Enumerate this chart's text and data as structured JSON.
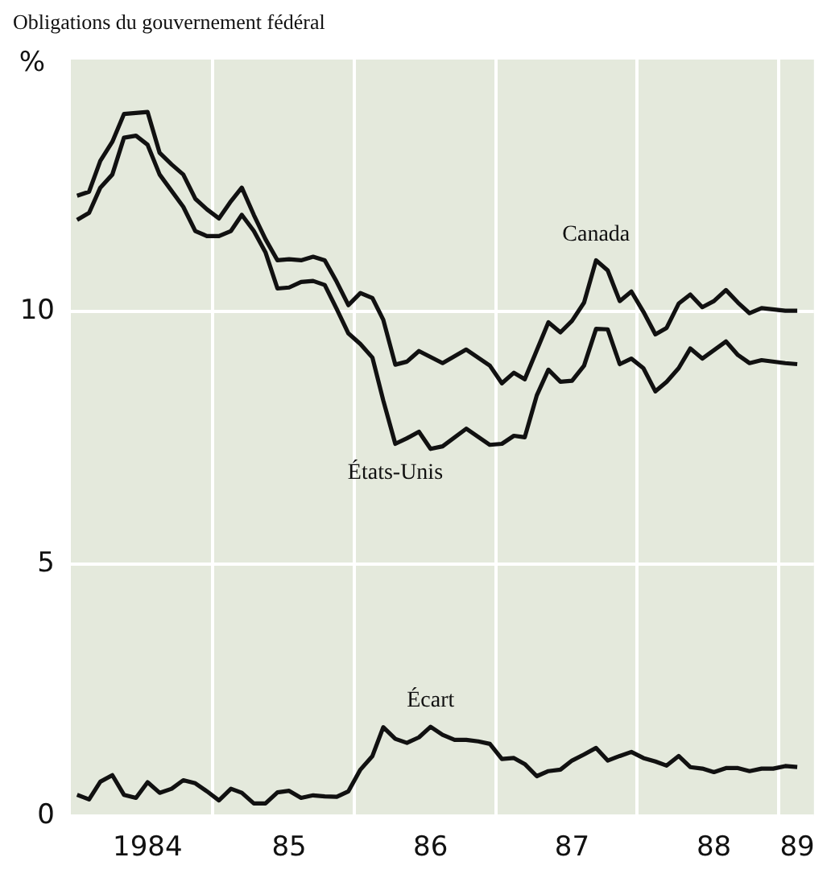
{
  "chart_data": {
    "type": "line",
    "title": "Obligations du gouvernement fédéral",
    "ylabel": "%",
    "xlim": [
      "1983-12-16",
      "1989-03-16"
    ],
    "ylim": [
      0,
      15
    ],
    "yticks": [
      0,
      5,
      10
    ],
    "xticks": [
      {
        "value": "1984-07",
        "label": "1984"
      },
      {
        "value": "1984-12-16",
        "label": null
      },
      {
        "value": "1985-07",
        "label": "85"
      },
      {
        "value": "1985-12-16",
        "label": null
      },
      {
        "value": "1986-07",
        "label": "86"
      },
      {
        "value": "1986-12-16",
        "label": null
      },
      {
        "value": "1987-07",
        "label": "87"
      },
      {
        "value": "1987-12-16",
        "label": null
      },
      {
        "value": "1988-07",
        "label": "88"
      },
      {
        "value": "1988-12-16",
        "label": null
      },
      {
        "value": "1989-02",
        "label": "89"
      }
    ],
    "grid": true,
    "legend": false,
    "marker": "none",
    "line_style": "solid",
    "series": [
      {
        "color": "#111111",
        "x": [
          "1984-01",
          "1984-02",
          "1984-03",
          "1984-04",
          "1984-05",
          "1984-07",
          "1984-08",
          "1984-09",
          "1984-10",
          "1984-11",
          "1984-12",
          "1985-01",
          "1985-02",
          "1985-03",
          "1985-04",
          "1985-05",
          "1985-06",
          "1985-07",
          "1985-08",
          "1985-09",
          "1985-10",
          "1985-11",
          "1985-12",
          "1986-01",
          "1986-02",
          "1986-03",
          "1986-04",
          "1986-05",
          "1986-06",
          "1986-08",
          "1986-10",
          "1986-12",
          "1987-01",
          "1987-02",
          "1987-03",
          "1987-05",
          "1987-06",
          "1987-07",
          "1987-08",
          "1987-09",
          "1987-10",
          "1987-11",
          "1987-12",
          "1988-01",
          "1988-02",
          "1988-03",
          "1988-04",
          "1988-05",
          "1988-06",
          "1988-07",
          "1988-08",
          "1988-09",
          "1988-10",
          "1988-11",
          "1989-01",
          "1989-02"
        ],
        "values": [
          12.3,
          12.38,
          12.99,
          13.37,
          13.92,
          13.96,
          13.15,
          12.92,
          12.72,
          12.24,
          12.03,
          11.85,
          12.19,
          12.46,
          11.92,
          11.44,
          11.02,
          11.04,
          11.02,
          11.09,
          11.02,
          10.59,
          10.13,
          10.37,
          10.27,
          9.84,
          8.95,
          9.01,
          9.22,
          8.98,
          9.25,
          8.93,
          8.58,
          8.79,
          8.66,
          9.79,
          9.59,
          9.82,
          10.18,
          11.02,
          10.82,
          10.21,
          10.4,
          10.0,
          9.55,
          9.68,
          10.16,
          10.34,
          10.09,
          10.21,
          10.43,
          10.18,
          9.97,
          10.07,
          10.02,
          10.02
        ]
      },
      {
        "color": "#111111",
        "x": [
          "1984-01",
          "1984-02",
          "1984-03",
          "1984-04",
          "1984-05",
          "1984-06",
          "1984-07",
          "1984-08",
          "1984-10",
          "1984-11",
          "1984-12",
          "1985-01",
          "1985-02",
          "1985-03",
          "1985-04",
          "1985-05",
          "1985-06",
          "1985-07",
          "1985-08",
          "1985-09",
          "1985-10",
          "1985-11",
          "1985-12",
          "1986-01",
          "1986-02",
          "1986-03",
          "1986-04",
          "1986-05",
          "1986-06",
          "1986-07",
          "1986-08",
          "1986-10",
          "1986-12",
          "1987-01",
          "1987-02",
          "1987-03",
          "1987-04",
          "1987-05",
          "1987-06",
          "1987-07",
          "1987-08",
          "1987-09",
          "1987-10",
          "1987-11",
          "1987-12",
          "1988-01",
          "1988-02",
          "1988-03",
          "1988-04",
          "1988-05",
          "1988-06",
          "1988-08",
          "1988-09",
          "1988-10",
          "1988-11",
          "1989-01",
          "1989-02"
        ],
        "values": [
          11.82,
          11.96,
          12.46,
          12.72,
          13.45,
          13.49,
          13.31,
          12.72,
          12.08,
          11.6,
          11.5,
          11.5,
          11.6,
          11.92,
          11.6,
          11.18,
          10.46,
          10.48,
          10.59,
          10.61,
          10.53,
          10.05,
          9.57,
          9.36,
          9.09,
          8.24,
          7.38,
          7.49,
          7.62,
          7.28,
          7.33,
          7.68,
          7.36,
          7.38,
          7.54,
          7.51,
          8.34,
          8.85,
          8.61,
          8.63,
          8.93,
          9.66,
          9.65,
          8.96,
          9.07,
          8.88,
          8.42,
          8.61,
          8.88,
          9.27,
          9.07,
          9.41,
          9.14,
          8.98,
          9.04,
          8.98,
          8.96
        ]
      },
      {
        "color": "#111111",
        "x": [
          "1984-01",
          "1984-02",
          "1984-03",
          "1984-04",
          "1984-05",
          "1984-06",
          "1984-07",
          "1984-08",
          "1984-09",
          "1984-10",
          "1984-11",
          "1984-12",
          "1985-01",
          "1985-02",
          "1985-03",
          "1985-04",
          "1985-05",
          "1985-06",
          "1985-07",
          "1985-08",
          "1985-09",
          "1985-10",
          "1985-11",
          "1985-12",
          "1986-01",
          "1986-02",
          "1986-03",
          "1986-04",
          "1986-05",
          "1986-06",
          "1986-07",
          "1986-08",
          "1986-09",
          "1986-10",
          "1986-11",
          "1986-12",
          "1987-01",
          "1987-02",
          "1987-03",
          "1987-04",
          "1987-05",
          "1987-06",
          "1987-07",
          "1987-08",
          "1987-09",
          "1987-10",
          "1987-11",
          "1987-12",
          "1988-01",
          "1988-02",
          "1988-03",
          "1988-04",
          "1988-05",
          "1988-06",
          "1988-07",
          "1988-08",
          "1988-09",
          "1988-10",
          "1988-11",
          "1988-12",
          "1989-01",
          "1989-02"
        ],
        "values": [
          0.42,
          0.33,
          0.68,
          0.81,
          0.42,
          0.36,
          0.67,
          0.46,
          0.54,
          0.71,
          0.65,
          0.49,
          0.31,
          0.54,
          0.46,
          0.25,
          0.25,
          0.47,
          0.5,
          0.36,
          0.41,
          0.39,
          0.38,
          0.49,
          0.92,
          1.19,
          1.76,
          1.53,
          1.45,
          1.56,
          1.77,
          1.61,
          1.51,
          1.51,
          1.48,
          1.43,
          1.13,
          1.15,
          1.03,
          0.79,
          0.89,
          0.92,
          1.1,
          1.22,
          1.35,
          1.1,
          1.19,
          1.27,
          1.15,
          1.08,
          1.0,
          1.19,
          0.97,
          0.94,
          0.87,
          0.95,
          0.95,
          0.89,
          0.94,
          0.94,
          0.99,
          0.97
        ]
      }
    ],
    "annotations": [
      {
        "text": "Canada",
        "x": "1987-09",
        "y": 11.02
      },
      {
        "text": "États-Unis",
        "x": "1986-04",
        "y": 7.38
      },
      {
        "text": "Écart",
        "x": "1986-07",
        "y": 1.77
      }
    ]
  }
}
